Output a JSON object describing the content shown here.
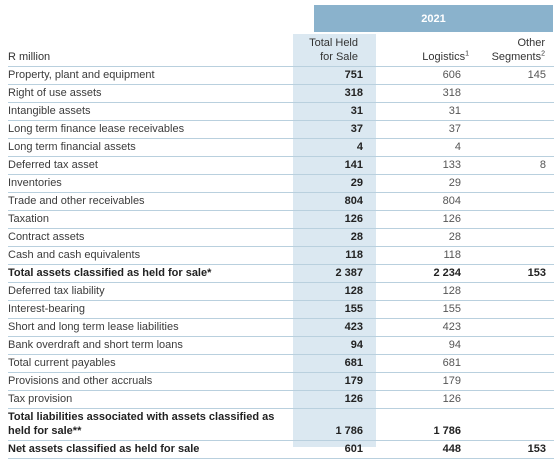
{
  "header": {
    "year": "2021",
    "unit_label": "R million",
    "col1_line1": "Total Held",
    "col1_line2": "for Sale",
    "col2": "Logistics",
    "col2_sup": "1",
    "col3_line1": "Other",
    "col3_line2": "Segments",
    "col3_sup": "2"
  },
  "rows": [
    {
      "label": "Property, plant and equipment",
      "total": "751",
      "logistics": "606",
      "other": "145"
    },
    {
      "label": "Right of use assets",
      "total": "318",
      "logistics": "318",
      "other": ""
    },
    {
      "label": "Intangible assets",
      "total": "31",
      "logistics": "31",
      "other": ""
    },
    {
      "label": "Long term finance lease receivables",
      "total": "37",
      "logistics": "37",
      "other": ""
    },
    {
      "label": "Long term financial assets",
      "total": "4",
      "logistics": "4",
      "other": ""
    },
    {
      "label": "Deferred tax asset",
      "total": "141",
      "logistics": "133",
      "other": "8"
    },
    {
      "label": "Inventories",
      "total": "29",
      "logistics": "29",
      "other": ""
    },
    {
      "label": "Trade and other receivables",
      "total": "804",
      "logistics": "804",
      "other": ""
    },
    {
      "label": "Taxation",
      "total": "126",
      "logistics": "126",
      "other": ""
    },
    {
      "label": "Contract assets",
      "total": "28",
      "logistics": "28",
      "other": ""
    },
    {
      "label": "Cash and cash equivalents",
      "total": "118",
      "logistics": "118",
      "other": ""
    },
    {
      "label": "Total assets classified as held for sale*",
      "total": "2 387",
      "logistics": "2 234",
      "other": "153"
    },
    {
      "label": "Deferred tax liability",
      "total": "128",
      "logistics": "128",
      "other": ""
    },
    {
      "label": "Interest-bearing",
      "total": "155",
      "logistics": "155",
      "other": ""
    },
    {
      "label": "Short and long term lease liabilities",
      "total": "423",
      "logistics": "423",
      "other": ""
    },
    {
      "label": "Bank overdraft and short term loans",
      "total": "94",
      "logistics": "94",
      "other": ""
    },
    {
      "label": "Total current payables",
      "total": "681",
      "logistics": "681",
      "other": ""
    },
    {
      "label": "Provisions and other accruals",
      "total": "179",
      "logistics": "179",
      "other": ""
    },
    {
      "label": "Tax provision",
      "total": "126",
      "logistics": "126",
      "other": ""
    },
    {
      "label": "Total liabilities associated with assets classified as held for sale**",
      "total": "1 786",
      "logistics": "1 786",
      "other": ""
    },
    {
      "label": "Net assets classified as held for sale",
      "total": "601",
      "logistics": "448",
      "other": "153"
    }
  ]
}
